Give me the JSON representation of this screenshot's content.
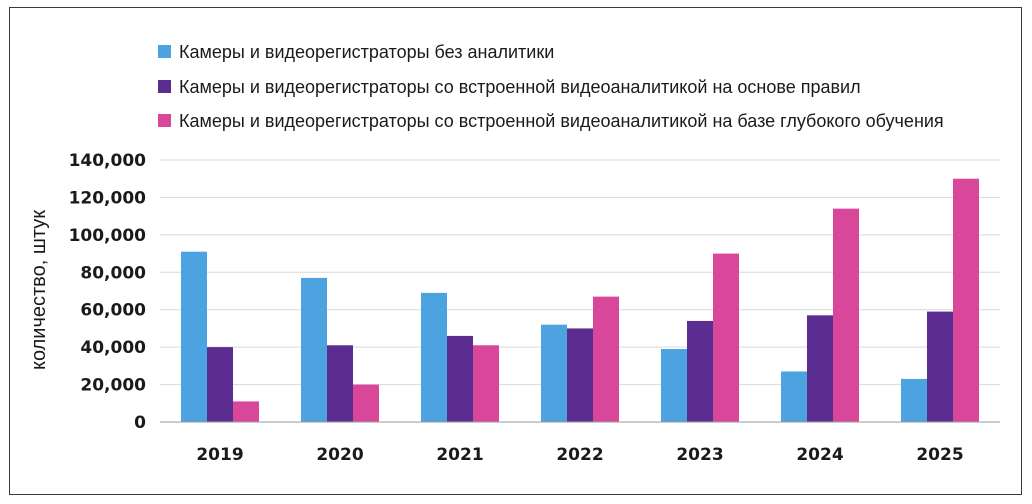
{
  "chart_data": {
    "type": "bar",
    "title": "",
    "xlabel": "",
    "ylabel": "количество, штук",
    "categories": [
      "2019",
      "2020",
      "2021",
      "2022",
      "2023",
      "2024",
      "2025"
    ],
    "ylim": [
      0,
      140000
    ],
    "yticks": [
      "0",
      "20,000",
      "40,000",
      "60,000",
      "80,000",
      "100,000",
      "120,000",
      "140,000"
    ],
    "grid": true,
    "legend_position": "top",
    "series": [
      {
        "name": "Камеры и видеорегистраторы без аналитики",
        "color": "#4da3e0",
        "values": [
          91000,
          77000,
          69000,
          52000,
          39000,
          27000,
          23000
        ]
      },
      {
        "name": "Камеры и видеорегистраторы со встроенной видеоаналитикой на основе правил",
        "color": "#5b2d90",
        "values": [
          40000,
          41000,
          46000,
          50000,
          54000,
          57000,
          59000
        ]
      },
      {
        "name": "Камеры и видеорегистраторы со встроенной видеоаналитикой на базе глубокого обучения",
        "color": "#d9479a",
        "values": [
          11000,
          20000,
          41000,
          67000,
          90000,
          114000,
          130000
        ]
      }
    ]
  }
}
